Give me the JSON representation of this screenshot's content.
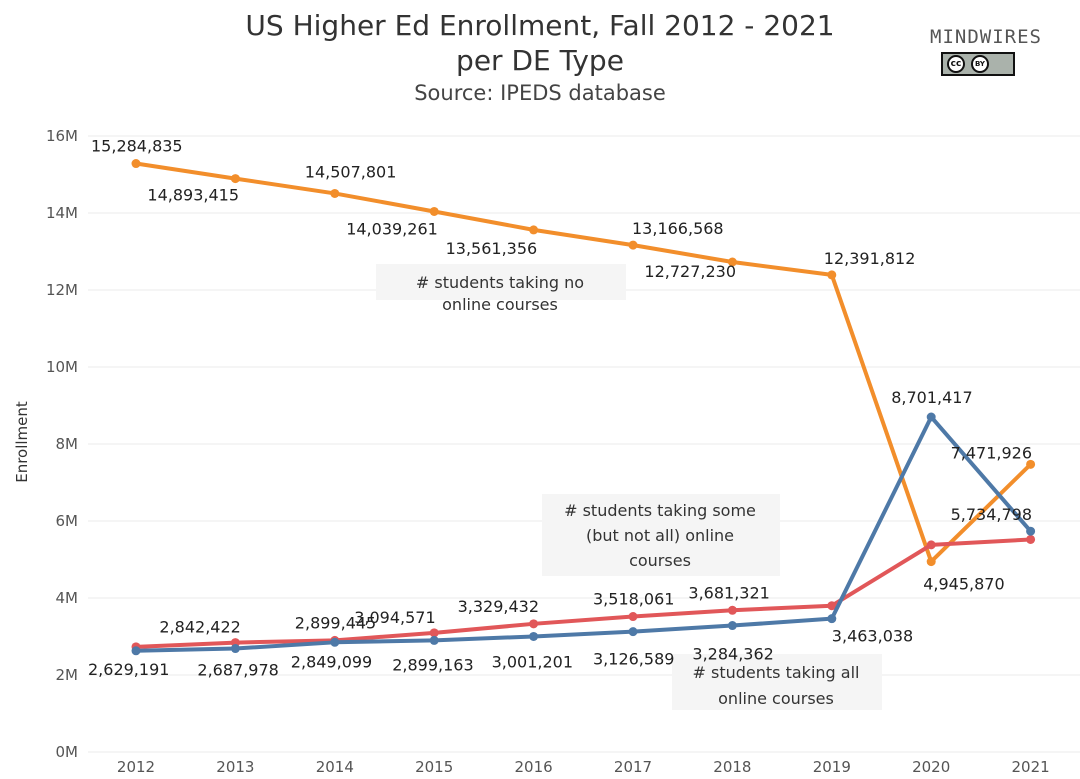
{
  "title": "US Higher Ed Enrollment, Fall 2012 - 2021",
  "subtitle": "per DE Type",
  "source": "Source: IPEDS database",
  "logo": {
    "text": "MINDWIRES",
    "license_cc": "cc",
    "license_by": "BY"
  },
  "colors": {
    "none": "#f28e2b",
    "some": "#e15759",
    "all": "#4e79a7",
    "grid": "#ebebeb",
    "annotation_bg": "#f5f5f5"
  },
  "chart_data": {
    "type": "line",
    "title": "US Higher Ed Enrollment, Fall 2012 - 2021 per DE Type",
    "xlabel": "",
    "ylabel": "Enrollment",
    "x": [
      "2012",
      "2013",
      "2014",
      "2015",
      "2016",
      "2017",
      "2018",
      "2019",
      "2020",
      "2021"
    ],
    "ylim": [
      0,
      16000000
    ],
    "yticks": [
      "0M",
      "2M",
      "4M",
      "6M",
      "8M",
      "10M",
      "12M",
      "14M",
      "16M"
    ],
    "grid": true,
    "series": [
      {
        "name": "# students taking no online courses",
        "values": [
          15284835,
          14893415,
          14507801,
          14039261,
          13561356,
          13166568,
          12727230,
          12391812,
          4945870,
          7471926
        ],
        "labels": [
          "15,284,835",
          "14,893,415",
          "14,507,801",
          "14,039,261",
          "13,561,356",
          "13,166,568",
          "12,727,230",
          "12,391,812",
          "4,945,870",
          "7,471,926"
        ]
      },
      {
        "name": "# students taking some (but not all) online courses",
        "values": [
          2731000,
          2842422,
          2899445,
          3094571,
          3329432,
          3518061,
          3681321,
          3800000,
          5380000,
          5520000
        ],
        "labels": [
          "",
          "2,842,422",
          "2,899,445",
          "3,094,571",
          "3,329,432",
          "3,518,061",
          "3,681,321",
          "",
          "",
          ""
        ]
      },
      {
        "name": "# students taking all online courses",
        "values": [
          2629191,
          2687978,
          2849099,
          2899163,
          3001201,
          3126589,
          3284362,
          3463038,
          8701417,
          5734798
        ],
        "labels": [
          "2,629,191",
          "2,687,978",
          "2,849,099",
          "2,899,163",
          "3,001,201",
          "3,126,589",
          "3,284,362",
          "3,463,038",
          "8,701,417",
          "5,734,798"
        ]
      }
    ],
    "annotations": [
      {
        "series": 0,
        "lines": [
          "# students taking no",
          "online courses"
        ]
      },
      {
        "series": 1,
        "lines": [
          "# students taking some",
          "(but not all) online",
          "courses"
        ]
      },
      {
        "series": 2,
        "lines": [
          "# students taking all",
          "online courses"
        ]
      }
    ]
  }
}
